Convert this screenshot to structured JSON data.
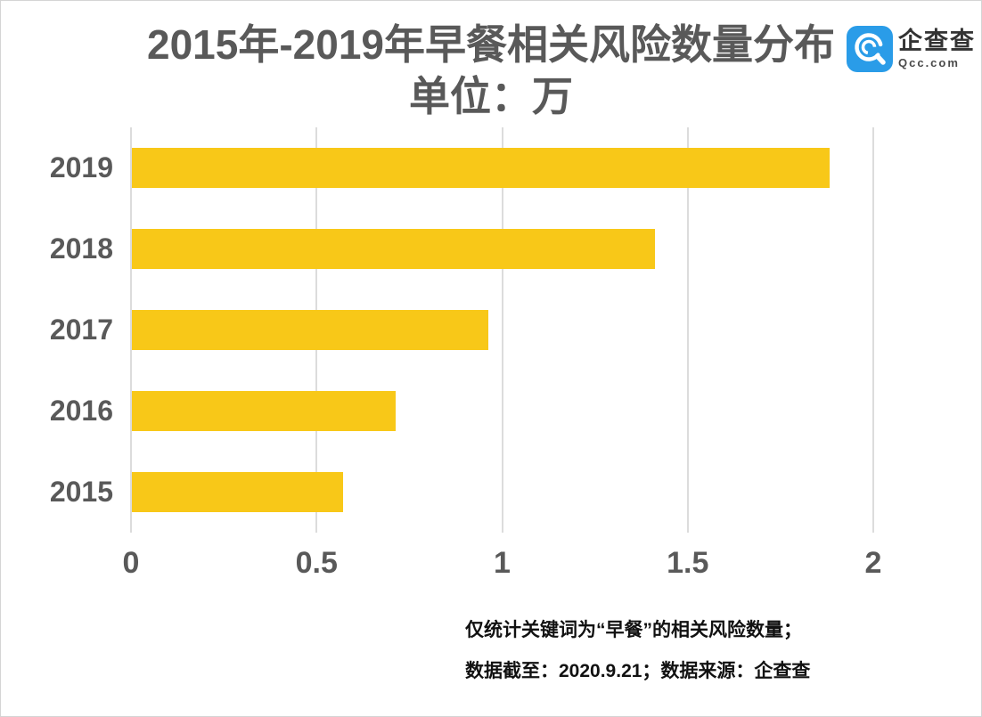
{
  "header": {
    "title_line1": "2015年-2019年早餐相关风险数量分布",
    "title_line2": "单位：万",
    "logo": {
      "icon": "qcc-magnifier-icon",
      "brand_name": "企查查",
      "brand_domain": "Qcc.com",
      "brand_color": "#2a9ce8"
    }
  },
  "chart_data": {
    "type": "bar",
    "orientation": "horizontal",
    "title": "2015年-2019年早餐相关风险数量分布",
    "subtitle": "单位：万",
    "categories": [
      "2019",
      "2018",
      "2017",
      "2016",
      "2015"
    ],
    "values": [
      1.88,
      1.41,
      0.96,
      0.71,
      0.57
    ],
    "xlabel": "",
    "ylabel": "",
    "xlim": [
      0,
      2
    ],
    "xtick_labels": [
      "0",
      "0.5",
      "1",
      "1.5",
      "2"
    ],
    "grid": true,
    "legend": "none",
    "bar_color": "#f8c818",
    "gridline_color": "#dcdcdc",
    "axis_text_color": "#595959"
  },
  "footer": {
    "note_line1": "仅统计关键词为“早餐”的相关风险数量；",
    "note_line2": "数据截至：2020.9.21；数据来源：企查查"
  }
}
